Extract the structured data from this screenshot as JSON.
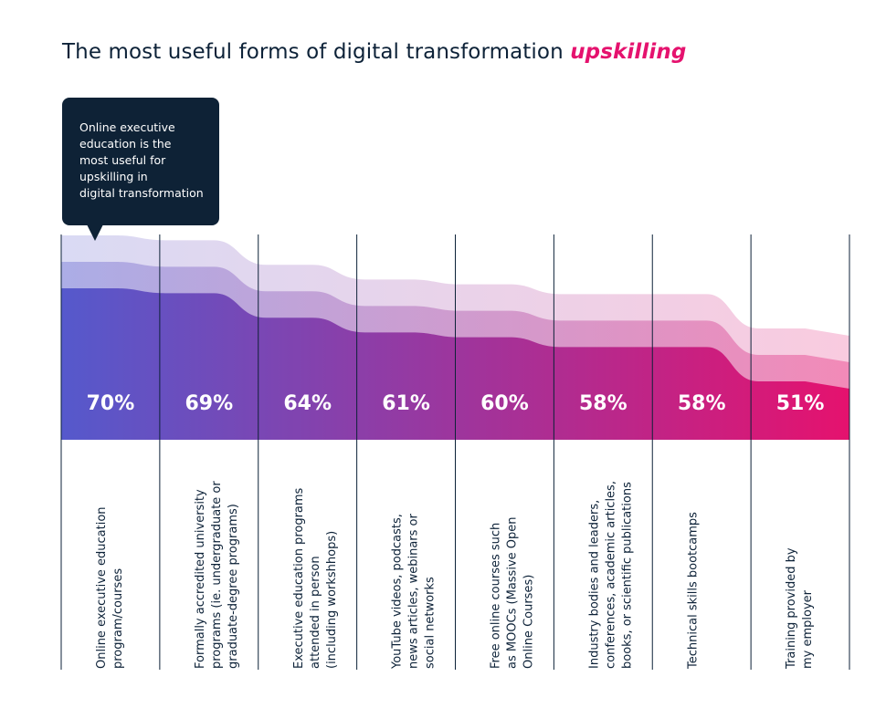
{
  "title": {
    "main": "The most useful forms of digital transformation",
    "highlight": "upskilling"
  },
  "callout": {
    "lines": [
      "Online executive",
      "education is the",
      "most useful for",
      "upskilling in",
      "digital transformation"
    ]
  },
  "colors": {
    "gradient_start": "#5559cc",
    "gradient_end": "#e5126e",
    "divider": "#0d2238"
  },
  "chart_data": {
    "type": "area",
    "categories": [
      "Online executive education program/courses",
      "Formally accredited university programs (ie. undergraduate or graduate-degree programs)",
      "Executive education programs attended in person (including workshhops)",
      "YouTube videos, podcasts, news articles, webinars or social networks",
      "Free online courses such as MOOCs (Massive Open Online Courses)",
      "Industry bodies and leaders, conferences, academic articles, books, or scientific publications",
      "Technical skills bootcamps",
      "Training provided by my employer"
    ],
    "category_label_lines": [
      [
        "Online executive education",
        "program/courses"
      ],
      [
        "Formally accredited university",
        "programs (ie. undergraduate or",
        "graduate-degree programs)"
      ],
      [
        "Executive education programs",
        "attended in person",
        "(including workshhops)"
      ],
      [
        "YouTube videos, podcasts,",
        "news articles, webinars or",
        "social networks"
      ],
      [
        "Free online courses such",
        "as MOOCs (Massive Open",
        "Online Courses)"
      ],
      [
        "Industry bodies and leaders,",
        "conferences, academic articles,",
        "books, or scientific publications"
      ],
      [
        "Technical skills bootcamps"
      ],
      [
        "Training provided by",
        "my employer"
      ]
    ],
    "values": [
      70,
      69,
      64,
      61,
      60,
      58,
      58,
      51
    ],
    "value_labels": [
      "70%",
      "69%",
      "64%",
      "61%",
      "60%",
      "58%",
      "58%",
      "51%"
    ],
    "ylim": [
      0,
      100
    ],
    "grid": false,
    "legend": "none"
  }
}
